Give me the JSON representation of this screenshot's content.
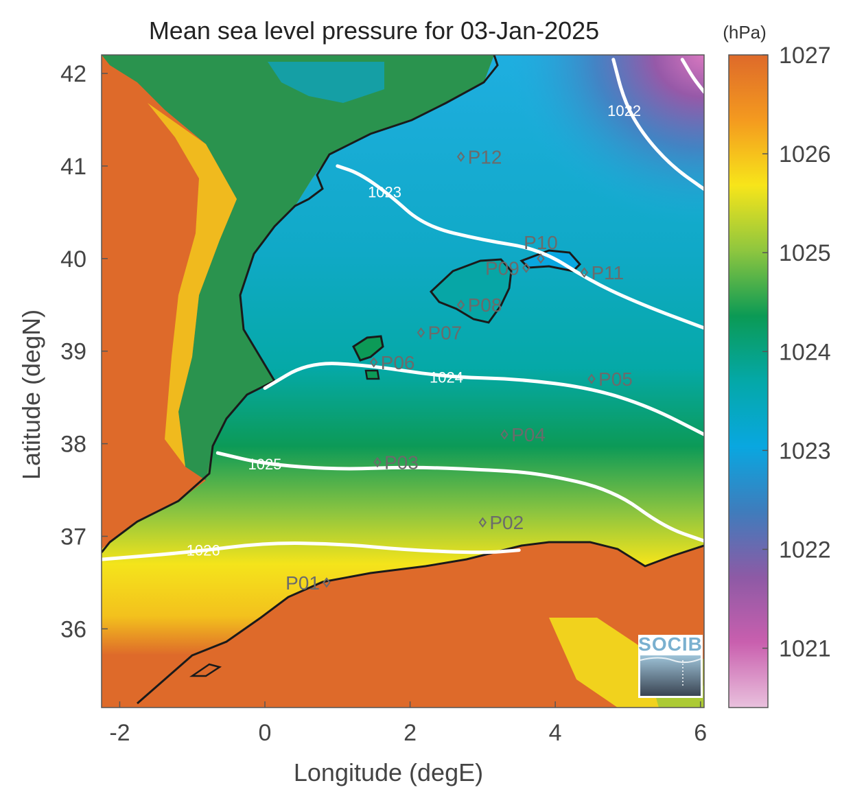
{
  "title": "Mean sea level pressure for 03-Jan-2025",
  "unit_label": "(hPa)",
  "logo_text": "SOCIB",
  "chart_data": {
    "type": "heatmap",
    "map_type": "mean sea level pressure contour map",
    "xlabel": "Longitude (degE)",
    "ylabel": "Latitude (degN)",
    "xlim": [
      -2.25,
      6.05
    ],
    "ylim": [
      35.15,
      42.2
    ],
    "x_ticks": [
      {
        "value": -2,
        "label": "-2"
      },
      {
        "value": 0,
        "label": "0"
      },
      {
        "value": 2,
        "label": "2"
      },
      {
        "value": 4,
        "label": "4"
      },
      {
        "value": 6,
        "label": "6"
      }
    ],
    "y_ticks": [
      {
        "value": 36,
        "label": "36"
      },
      {
        "value": 37,
        "label": "37"
      },
      {
        "value": 38,
        "label": "38"
      },
      {
        "value": 39,
        "label": "39"
      },
      {
        "value": 40,
        "label": "40"
      },
      {
        "value": 41,
        "label": "41"
      },
      {
        "value": 42,
        "label": "42"
      }
    ],
    "colorbar": {
      "min": 1020.4,
      "max": 1027.0,
      "ticks": [
        {
          "value": 1021,
          "label": "1021"
        },
        {
          "value": 1022,
          "label": "1022"
        },
        {
          "value": 1023,
          "label": "1023"
        },
        {
          "value": 1024,
          "label": "1024"
        },
        {
          "value": 1025,
          "label": "1025"
        },
        {
          "value": 1026,
          "label": "1026"
        },
        {
          "value": 1027,
          "label": "1027"
        }
      ],
      "colors": [
        "#e9c1dd",
        "#c95fae",
        "#8d5aa5",
        "#3f7cbc",
        "#09a7e0",
        "#04a8a8",
        "#0b9a55",
        "#8ec63f",
        "#f7e51a",
        "#f49a1f",
        "#de6a2a"
      ]
    },
    "contours": [
      {
        "level": 1022,
        "label": "1022",
        "label_at": [
          4.95,
          41.6
        ],
        "points": [
          [
            4.8,
            42.15
          ],
          [
            4.95,
            41.7
          ],
          [
            5.2,
            41.35
          ],
          [
            5.6,
            41.0
          ],
          [
            6.05,
            40.75
          ]
        ]
      },
      {
        "level": 1022,
        "label": "",
        "label_at": null,
        "points": [
          [
            5.75,
            42.15
          ],
          [
            5.9,
            41.95
          ],
          [
            6.05,
            41.8
          ]
        ]
      },
      {
        "level": 1023,
        "label": "1023",
        "label_at": [
          1.65,
          40.72
        ],
        "points": [
          [
            1.0,
            41.0
          ],
          [
            1.3,
            40.92
          ],
          [
            1.7,
            40.7
          ],
          [
            2.2,
            40.35
          ],
          [
            3.0,
            40.2
          ],
          [
            3.8,
            40.1
          ],
          [
            4.5,
            39.75
          ],
          [
            5.2,
            39.5
          ],
          [
            6.05,
            39.25
          ]
        ]
      },
      {
        "level": 1024,
        "label": "1024",
        "label_at": [
          2.5,
          38.72
        ],
        "points": [
          [
            0.0,
            38.6
          ],
          [
            0.6,
            38.88
          ],
          [
            1.4,
            38.85
          ],
          [
            2.5,
            38.72
          ],
          [
            3.5,
            38.7
          ],
          [
            4.5,
            38.6
          ],
          [
            5.3,
            38.4
          ],
          [
            6.05,
            38.1
          ]
        ]
      },
      {
        "level": 1025,
        "label": "1025",
        "label_at": [
          0.0,
          37.78
        ],
        "points": [
          [
            -0.65,
            37.9
          ],
          [
            0.0,
            37.78
          ],
          [
            1.0,
            37.72
          ],
          [
            2.0,
            37.75
          ],
          [
            3.0,
            37.72
          ],
          [
            3.8,
            37.68
          ],
          [
            4.8,
            37.5
          ],
          [
            5.5,
            37.1
          ],
          [
            6.05,
            36.95
          ]
        ]
      },
      {
        "level": 1026,
        "label": "1026",
        "label_at": [
          -0.85,
          36.85
        ],
        "points": [
          [
            -2.25,
            36.75
          ],
          [
            -1.0,
            36.83
          ],
          [
            0.0,
            36.93
          ],
          [
            1.0,
            36.92
          ],
          [
            2.0,
            36.85
          ],
          [
            3.0,
            36.82
          ],
          [
            3.5,
            36.85
          ]
        ]
      }
    ],
    "stations": [
      {
        "id": "P01",
        "lon": 0.85,
        "lat": 36.5,
        "label_side": "left"
      },
      {
        "id": "P02",
        "lon": 3.0,
        "lat": 37.15,
        "label_side": "right"
      },
      {
        "id": "P03",
        "lon": 1.55,
        "lat": 37.8,
        "label_side": "right"
      },
      {
        "id": "P04",
        "lon": 3.3,
        "lat": 38.1,
        "label_side": "right"
      },
      {
        "id": "P05",
        "lon": 4.5,
        "lat": 38.7,
        "label_side": "right"
      },
      {
        "id": "P06",
        "lon": 1.5,
        "lat": 38.88,
        "label_side": "right"
      },
      {
        "id": "P07",
        "lon": 2.15,
        "lat": 39.2,
        "label_side": "right"
      },
      {
        "id": "P08",
        "lon": 2.7,
        "lat": 39.5,
        "label_side": "right"
      },
      {
        "id": "P09",
        "lon": 3.6,
        "lat": 39.9,
        "label_side": "left"
      },
      {
        "id": "P10",
        "lon": 3.8,
        "lat": 40.0,
        "label_side": "top"
      },
      {
        "id": "P11",
        "lon": 4.4,
        "lat": 39.85,
        "label_side": "right"
      },
      {
        "id": "P12",
        "lon": 2.7,
        "lat": 41.1,
        "label_side": "right"
      }
    ]
  }
}
